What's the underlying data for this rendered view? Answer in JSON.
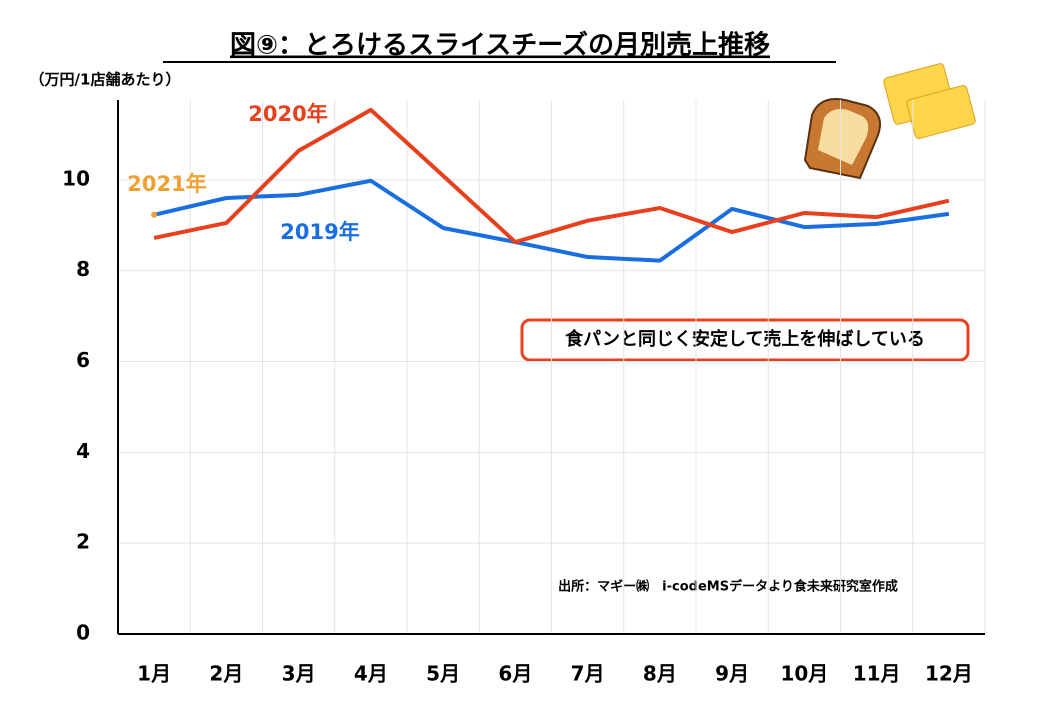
{
  "chart_data": {
    "type": "line",
    "title": "図⑨：とろけるスライスチーズの月別売上推移",
    "y_label": "（万円/1店舗あたり）",
    "annotation": "食パンと同じく安定して売上を伸ばしている",
    "source": "出所：マギー㈱　i-codeMSデータより食未来研究室作成",
    "categories": [
      "1月",
      "2月",
      "3月",
      "4月",
      "5月",
      "6月",
      "7月",
      "8月",
      "9月",
      "10月",
      "11月",
      "12月"
    ],
    "series": [
      {
        "name": "2019年",
        "color": "#1a6fe0",
        "values": [
          9.23,
          9.6,
          9.67,
          9.98,
          8.94,
          8.63,
          8.3,
          8.22,
          9.36,
          8.96,
          9.03,
          9.25
        ]
      },
      {
        "name": "2020年",
        "color": "#e8401c",
        "values": [
          8.72,
          9.05,
          10.64,
          11.54,
          10.09,
          8.63,
          9.1,
          9.38,
          8.85,
          9.27,
          9.18,
          9.54
        ]
      },
      {
        "name": "2021年",
        "color": "#f0a030",
        "values": [
          9.23,
          null,
          null,
          null,
          null,
          null,
          null,
          null,
          null,
          null,
          null,
          null
        ]
      }
    ],
    "ylim": [
      0,
      12
    ],
    "yticks": [
      0,
      2,
      4,
      6,
      8,
      10
    ],
    "grid": true
  }
}
